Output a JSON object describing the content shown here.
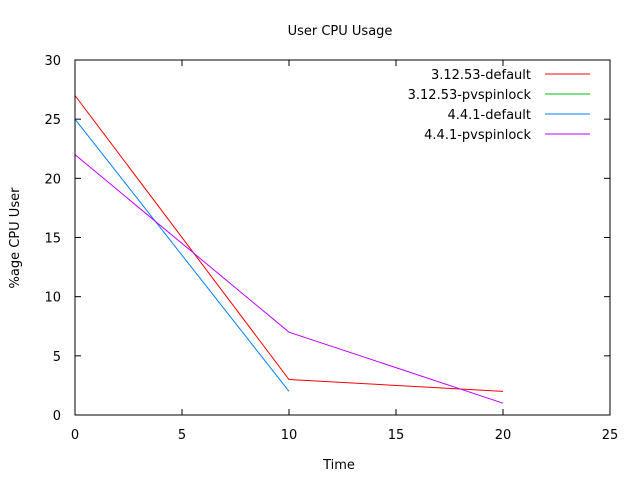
{
  "chart_data": {
    "type": "line",
    "title": "User CPU Usage",
    "xlabel": "Time",
    "ylabel": "%age CPU User",
    "xlim": [
      0,
      25
    ],
    "ylim": [
      0,
      30
    ],
    "xticks": [
      "0",
      "5",
      "10",
      "15",
      "20",
      "25"
    ],
    "yticks": [
      "0",
      "5",
      "10",
      "15",
      "20",
      "25",
      "30"
    ],
    "grid": false,
    "legend_position": "top-right",
    "series": [
      {
        "name": "3.12.53-default",
        "color": "#ff0000",
        "x": [
          0,
          10,
          20
        ],
        "y": [
          27,
          3,
          2
        ]
      },
      {
        "name": "3.12.53-pvspinlock",
        "color": "#00c000",
        "x": [],
        "y": []
      },
      {
        "name": "4.4.1-default",
        "color": "#0080ff",
        "x": [
          0,
          10
        ],
        "y": [
          25,
          2
        ]
      },
      {
        "name": "4.4.1-pvspinlock",
        "color": "#c000ff",
        "x": [
          0,
          10,
          20
        ],
        "y": [
          22,
          7,
          1
        ]
      }
    ]
  }
}
